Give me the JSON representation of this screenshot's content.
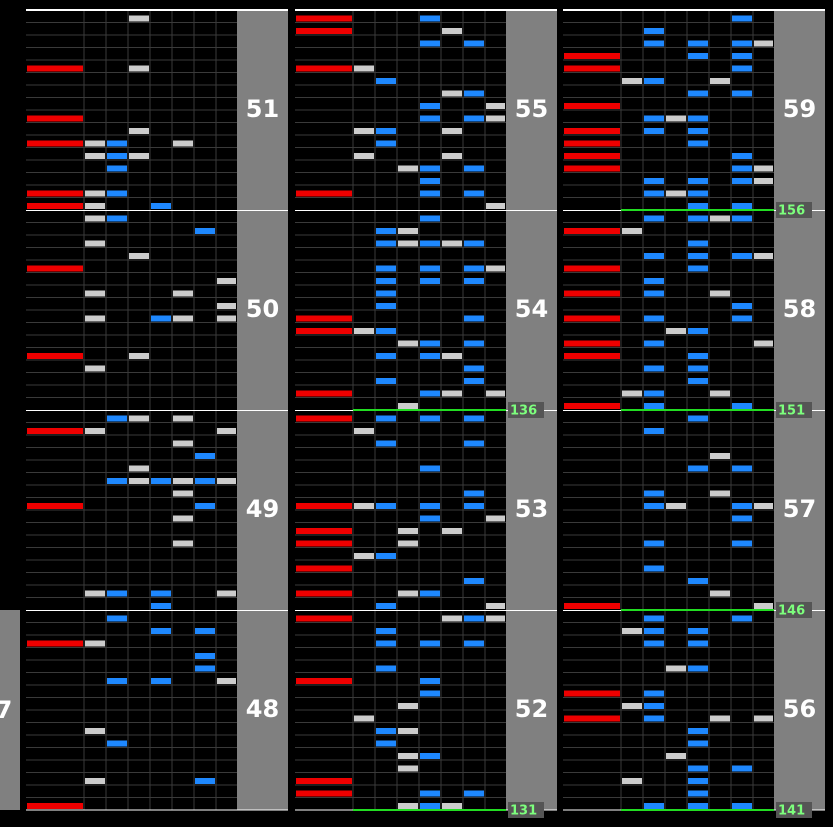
{
  "partial_measure": "7",
  "columns": [
    {
      "measures": [
        "48",
        "49",
        "50",
        "51"
      ],
      "markers": []
    },
    {
      "measures": [
        "52",
        "53",
        "54",
        "55"
      ],
      "markers": [
        "131",
        "136"
      ]
    },
    {
      "measures": [
        "56",
        "57",
        "58",
        "59"
      ],
      "markers": [
        "141",
        "146",
        "151",
        "156"
      ]
    }
  ]
}
